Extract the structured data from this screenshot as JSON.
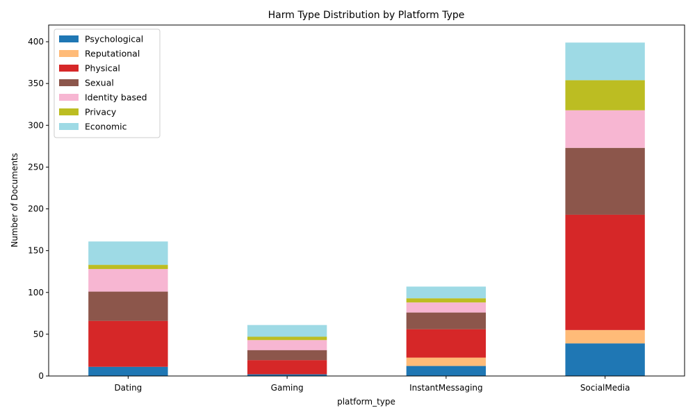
{
  "chart_data": {
    "type": "bar",
    "stacked": true,
    "title": "Harm Type Distribution by Platform Type",
    "xlabel": "platform_type",
    "ylabel": "Number of Documents",
    "categories": [
      "Dating",
      "Gaming",
      "InstantMessaging",
      "SocialMedia"
    ],
    "ylim": [
      0,
      420
    ],
    "yticks": [
      0,
      50,
      100,
      150,
      200,
      250,
      300,
      350,
      400
    ],
    "grid": false,
    "legend_position": "top-left",
    "series": [
      {
        "name": "Psychological",
        "color": "#1f77b4",
        "values": [
          11,
          2,
          12,
          39
        ]
      },
      {
        "name": "Reputational",
        "color": "#ffbb78",
        "values": [
          0,
          0,
          10,
          16
        ]
      },
      {
        "name": "Physical",
        "color": "#d62728",
        "values": [
          55,
          17,
          34,
          138
        ]
      },
      {
        "name": "Sexual",
        "color": "#8c564b",
        "values": [
          35,
          12,
          20,
          80
        ]
      },
      {
        "name": "Identity based",
        "color": "#f7b6d2",
        "values": [
          27,
          12,
          12,
          45
        ]
      },
      {
        "name": "Privacy",
        "color": "#bcbd22",
        "values": [
          5,
          4,
          5,
          36
        ]
      },
      {
        "name": "Economic",
        "color": "#9edae5",
        "values": [
          28,
          14,
          14,
          45
        ]
      }
    ]
  }
}
